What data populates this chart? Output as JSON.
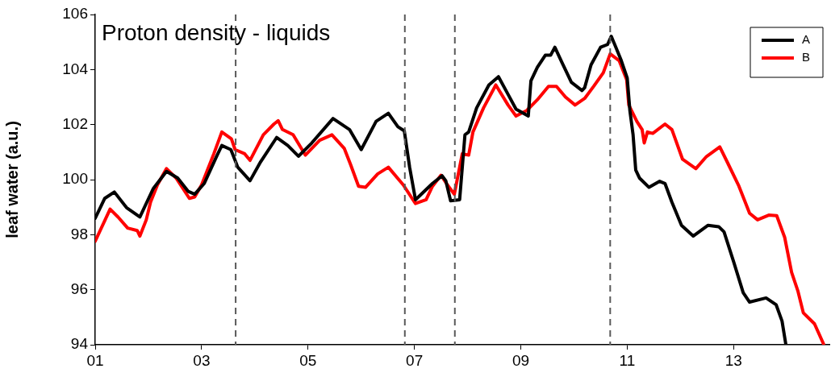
{
  "chart_data": {
    "type": "line",
    "title": "Proton density - liquids",
    "ylabel": "leaf water (a.u.)",
    "xlim": [
      1,
      14.8
    ],
    "xticks": [
      {
        "value": 1,
        "label": "01"
      },
      {
        "value": 3,
        "label": "03"
      },
      {
        "value": 5,
        "label": "05"
      },
      {
        "value": 7,
        "label": "07"
      },
      {
        "value": 9,
        "label": "09"
      },
      {
        "value": 11,
        "label": "11"
      },
      {
        "value": 13,
        "label": "13"
      }
    ],
    "ylim": [
      94,
      106
    ],
    "yticks": [
      94,
      96,
      98,
      100,
      102,
      104,
      106
    ],
    "grid": false,
    "legend": "top right",
    "marker": "none",
    "line_style": "solid",
    "ref_lines": [
      {
        "axis": "x",
        "value": 3.64,
        "color": "#595959",
        "line_style": "dashed"
      },
      {
        "axis": "x",
        "value": 6.82,
        "color": "#595959",
        "line_style": "dashed"
      },
      {
        "axis": "x",
        "value": 7.76,
        "color": "#595959",
        "line_style": "dashed"
      },
      {
        "axis": "x",
        "value": 10.68,
        "color": "#595959",
        "line_style": "dashed"
      }
    ],
    "series": [
      {
        "name": "A",
        "color": "#000000",
        "x": [
          1.0,
          1.18,
          1.36,
          1.59,
          1.84,
          2.09,
          2.34,
          2.55,
          2.75,
          2.87,
          3.05,
          3.28,
          3.38,
          3.55,
          3.68,
          3.91,
          4.11,
          4.41,
          4.62,
          4.82,
          5.07,
          5.47,
          5.78,
          6.0,
          6.28,
          6.51,
          6.69,
          6.81,
          6.91,
          7.02,
          7.34,
          7.52,
          7.59,
          7.68,
          7.85,
          7.95,
          8.02,
          8.17,
          8.4,
          8.58,
          8.76,
          8.91,
          9.14,
          9.19,
          9.31,
          9.46,
          9.56,
          9.64,
          9.77,
          9.95,
          10.15,
          10.2,
          10.32,
          10.5,
          10.63,
          10.7,
          10.88,
          11.0,
          11.05,
          11.11,
          11.16,
          11.23,
          11.41,
          11.61,
          11.71,
          11.84,
          12.02,
          12.24,
          12.52,
          12.72,
          12.82,
          13.0,
          13.18,
          13.3,
          13.61,
          13.8,
          13.91,
          13.98
        ],
        "values": [
          98.6,
          99.32,
          99.55,
          98.98,
          98.64,
          99.67,
          100.3,
          100.06,
          99.57,
          99.47,
          99.86,
          100.84,
          101.24,
          101.09,
          100.45,
          99.96,
          100.65,
          101.53,
          101.24,
          100.85,
          101.33,
          102.22,
          101.82,
          101.09,
          102.12,
          102.41,
          101.92,
          101.77,
          100.45,
          99.27,
          99.86,
          100.14,
          99.96,
          99.23,
          99.27,
          101.63,
          101.73,
          102.61,
          103.44,
          103.74,
          103.1,
          102.56,
          102.31,
          103.59,
          104.08,
          104.52,
          104.52,
          104.81,
          104.27,
          103.54,
          103.24,
          103.34,
          104.17,
          104.81,
          104.91,
          105.21,
          104.37,
          103.69,
          102.51,
          101.63,
          100.35,
          100.06,
          99.72,
          99.94,
          99.86,
          99.18,
          98.34,
          97.95,
          98.34,
          98.29,
          98.1,
          97.02,
          95.89,
          95.55,
          95.7,
          95.45,
          94.86,
          94.03
        ]
      },
      {
        "name": "B",
        "color": "#ff0000",
        "x": [
          1.0,
          1.28,
          1.43,
          1.61,
          1.79,
          1.84,
          1.96,
          2.04,
          2.17,
          2.34,
          2.52,
          2.77,
          2.87,
          3.0,
          3.23,
          3.38,
          3.56,
          3.63,
          3.81,
          3.91,
          4.16,
          4.36,
          4.44,
          4.52,
          4.72,
          4.95,
          5.22,
          5.45,
          5.68,
          5.8,
          5.95,
          6.08,
          6.31,
          6.51,
          6.79,
          7.02,
          7.22,
          7.34,
          7.5,
          7.62,
          7.75,
          7.9,
          8.02,
          8.1,
          8.3,
          8.53,
          8.76,
          8.91,
          9.11,
          9.31,
          9.52,
          9.67,
          9.84,
          10.02,
          10.2,
          10.37,
          10.55,
          10.68,
          10.85,
          10.99,
          11.03,
          11.18,
          11.28,
          11.32,
          11.38,
          11.48,
          11.71,
          11.84,
          12.04,
          12.29,
          12.49,
          12.74,
          12.89,
          13.1,
          13.3,
          13.45,
          13.66,
          13.81,
          13.96,
          14.09,
          14.21,
          14.31,
          14.52,
          14.69
        ],
        "values": [
          97.76,
          98.93,
          98.64,
          98.24,
          98.15,
          97.95,
          98.54,
          99.18,
          99.81,
          100.4,
          100.06,
          99.32,
          99.37,
          99.81,
          100.94,
          101.73,
          101.48,
          101.09,
          100.94,
          100.7,
          101.63,
          102.02,
          102.14,
          101.82,
          101.63,
          100.89,
          101.43,
          101.63,
          101.14,
          100.55,
          99.76,
          99.72,
          100.21,
          100.45,
          99.81,
          99.13,
          99.27,
          99.76,
          100.16,
          99.81,
          99.47,
          100.94,
          100.89,
          101.73,
          102.61,
          103.44,
          102.71,
          102.31,
          102.51,
          102.9,
          103.39,
          103.39,
          103.0,
          102.71,
          102.95,
          103.39,
          103.88,
          104.57,
          104.32,
          103.63,
          102.71,
          102.12,
          101.82,
          101.33,
          101.73,
          101.68,
          102.02,
          101.82,
          100.74,
          100.4,
          100.84,
          101.19,
          100.6,
          99.76,
          98.78,
          98.54,
          98.71,
          98.69,
          97.9,
          96.63,
          95.94,
          95.16,
          94.76,
          94.03
        ]
      }
    ]
  }
}
